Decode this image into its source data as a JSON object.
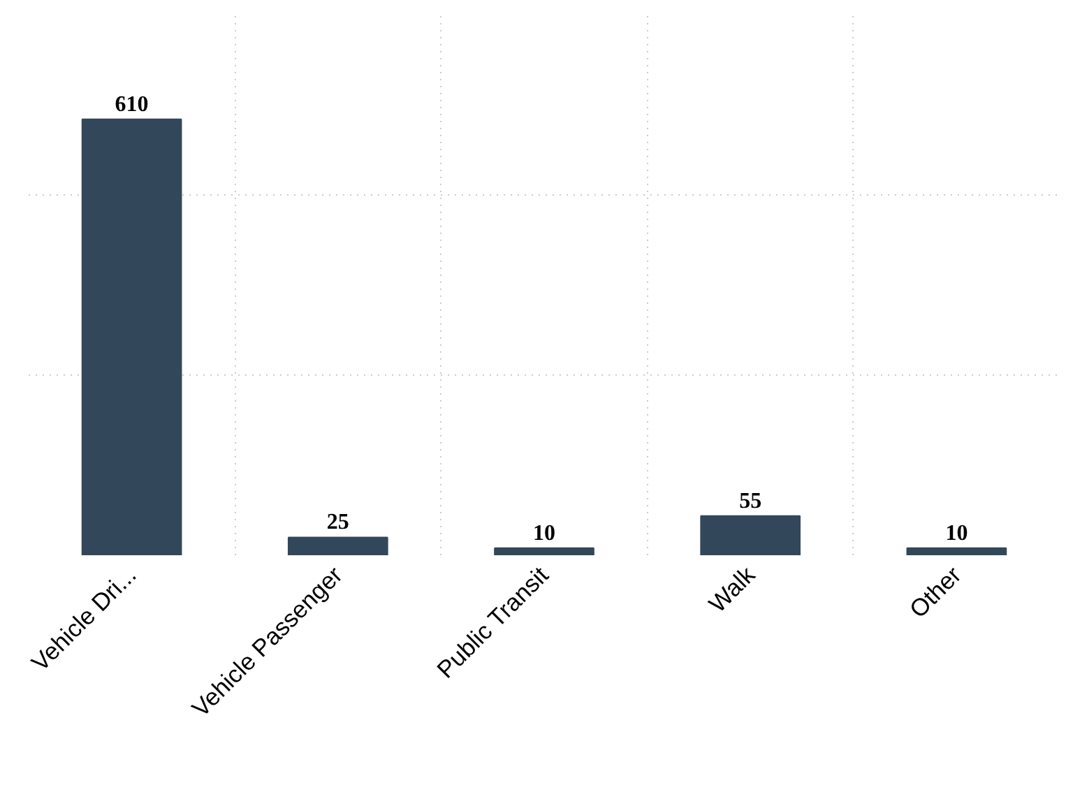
{
  "chart_data": {
    "type": "bar",
    "categories": [
      "Vehicle Dri...",
      "Vehicle Passenger",
      "Public Transit",
      "Walk",
      "Other"
    ],
    "values": [
      610,
      25,
      10,
      55,
      10
    ],
    "color": "#33475b",
    "data_labels": true,
    "grid": true
  }
}
